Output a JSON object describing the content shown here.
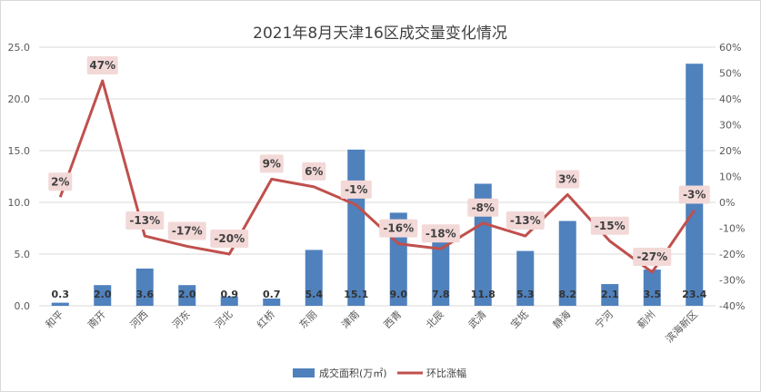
{
  "chart_data": {
    "type": "bar+line",
    "title": "2021年8月天津16区成交量变化情况",
    "categories": [
      "和平",
      "南开",
      "河西",
      "河东",
      "河北",
      "红桥",
      "东丽",
      "津南",
      "西青",
      "北辰",
      "武清",
      "宝坻",
      "静海",
      "宁河",
      "蓟州",
      "滨海新区"
    ],
    "series": [
      {
        "name": "成交面积(万㎡)",
        "type": "bar",
        "axis": "left",
        "values": [
          0.3,
          2.0,
          3.6,
          2.0,
          0.9,
          0.7,
          5.4,
          15.1,
          9.0,
          7.8,
          11.8,
          5.3,
          8.2,
          2.1,
          3.5,
          23.4
        ],
        "labels": [
          "0.3",
          "2.0",
          "3.6",
          "2.0",
          "0.9",
          "0.7",
          "5.4",
          "15.1",
          "9.0",
          "7.8",
          "11.8",
          "5.3",
          "8.2",
          "2.1",
          "3.5",
          "23.4"
        ],
        "color": "#4f81bd"
      },
      {
        "name": "环比涨幅",
        "type": "line",
        "axis": "right",
        "values": [
          2,
          47,
          -13,
          -17,
          -20,
          9,
          6,
          -1,
          -16,
          -18,
          -8,
          -13,
          3,
          -15,
          -27,
          -3
        ],
        "labels": [
          "2%",
          "47%",
          "-13%",
          "-17%",
          "-20%",
          "9%",
          "6%",
          "-1%",
          "-16%",
          "-18%",
          "-8%",
          "-13%",
          "3%",
          "-15%",
          "-27%",
          "-3%"
        ],
        "color": "#c0504d"
      }
    ],
    "y_left": {
      "min": 0,
      "max": 25,
      "step": 5,
      "ticks": [
        "0.0",
        "5.0",
        "10.0",
        "15.0",
        "20.0",
        "25.0"
      ]
    },
    "y_right": {
      "min": -40,
      "max": 60,
      "step": 10,
      "ticks": [
        "-40%",
        "-30%",
        "-20%",
        "-10%",
        "0%",
        "10%",
        "20%",
        "30%",
        "40%",
        "50%",
        "60%"
      ]
    },
    "grid": true,
    "legend_position": "bottom"
  }
}
